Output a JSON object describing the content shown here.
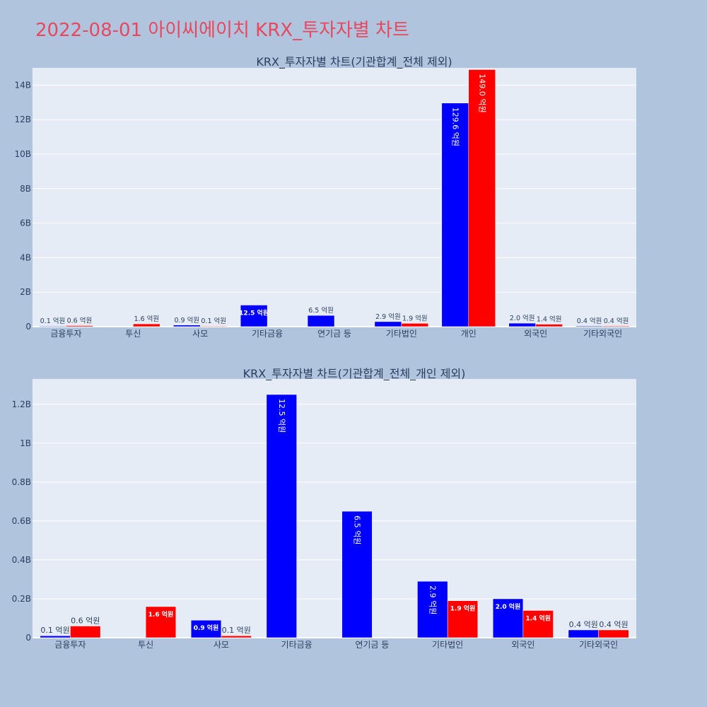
{
  "page": {
    "title": "2022-08-01 아이씨에이치 KRX_투자자별 차트",
    "title_color": "#e8485f",
    "background": "#b0c4de",
    "plot_background": "#e5ecf6"
  },
  "chart_data": [
    {
      "type": "bar",
      "title": "KRX_투자자별 차트(기관합계_전체 제외)",
      "xlabel": "",
      "ylabel": "",
      "categories": [
        "금융투자",
        "투신",
        "사모",
        "기타금융",
        "연기금 등",
        "기타법인",
        "개인",
        "외국인",
        "기타외국인"
      ],
      "ylim": [
        0,
        15000000000
      ],
      "yticks": [
        0,
        2000000000,
        4000000000,
        6000000000,
        8000000000,
        10000000000,
        12000000000,
        14000000000
      ],
      "ytick_labels": [
        "0",
        "2B",
        "4B",
        "6B",
        "8B",
        "10B",
        "12B",
        "14B"
      ],
      "grid": true,
      "series": [
        {
          "color": "#0000ff",
          "values": [
            10000000,
            null,
            90000000,
            1250000000,
            650000000,
            290000000,
            12960000000,
            200000000,
            40000000
          ],
          "labels": [
            "0.1 억원",
            "",
            "0.9 억원",
            "12.5 억원",
            "6.5 억원",
            "2.9 억원",
            "129.6 억원",
            "2.0 억원",
            "0.4 억원"
          ]
        },
        {
          "color": "#ff0000",
          "values": [
            60000000,
            160000000,
            10000000,
            null,
            null,
            190000000,
            14900000000,
            140000000,
            40000000
          ],
          "labels": [
            "0.6 억원",
            "1.6 억원",
            "0.1 억원",
            "",
            "",
            "1.9 억원",
            "149.0 억원",
            "1.4 억원",
            "0.4 억원"
          ]
        }
      ]
    },
    {
      "type": "bar",
      "title": "KRX_투자자별 차트(기관합계_전체_개인 제외)",
      "xlabel": "",
      "ylabel": "",
      "categories": [
        "금융투자",
        "투신",
        "사모",
        "기타금융",
        "연기금 등",
        "기타법인",
        "외국인",
        "기타외국인"
      ],
      "ylim": [
        0,
        1330000000
      ],
      "yticks": [
        0,
        200000000,
        400000000,
        600000000,
        800000000,
        1000000000,
        1200000000
      ],
      "ytick_labels": [
        "0",
        "0.2B",
        "0.4B",
        "0.6B",
        "0.8B",
        "1B",
        "1.2B"
      ],
      "grid": true,
      "series": [
        {
          "color": "#0000ff",
          "values": [
            10000000,
            null,
            90000000,
            1250000000,
            650000000,
            290000000,
            200000000,
            40000000
          ],
          "labels": [
            "0.1 억원",
            "",
            "0.9 억원",
            "12.5 억원",
            "6.5 억원",
            "2.9 억원",
            "2.0 억원",
            "0.4 억원"
          ]
        },
        {
          "color": "#ff0000",
          "values": [
            60000000,
            160000000,
            10000000,
            null,
            null,
            190000000,
            140000000,
            40000000
          ],
          "labels": [
            "0.6 억원",
            "1.6 억원",
            "0.1 억원",
            "",
            "",
            "1.9 억원",
            "1.4 억원",
            "0.4 억원"
          ]
        }
      ]
    }
  ]
}
